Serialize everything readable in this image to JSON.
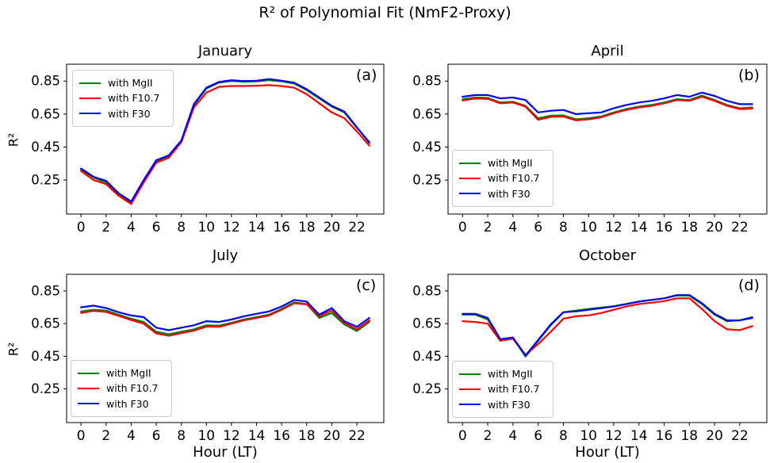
{
  "figure": {
    "suptitle": "R² of Polynomial Fit (NmF2-Proxy)"
  },
  "axes": {
    "ylabel": "R²",
    "xlabel": "Hour (LT)",
    "ytick_labels": [
      "0.85",
      "0.65",
      "0.45",
      "0.25"
    ],
    "yticks": [
      0.85,
      0.65,
      0.45,
      0.25
    ],
    "xticks": [
      0,
      2,
      4,
      6,
      8,
      10,
      12,
      14,
      16,
      18,
      20,
      22
    ],
    "ylim": [
      0.044,
      0.952
    ],
    "xlim": [
      -1.15,
      24.15
    ],
    "grid": false
  },
  "legend": {
    "position_panel_a": "upper-left",
    "position_panels_bcd": "lower-left",
    "items": [
      {
        "label": "with MgII",
        "color": "#008000",
        "series": "mgii"
      },
      {
        "label": "with F10.7",
        "color": "#ff0000",
        "series": "f107"
      },
      {
        "label": "with F30",
        "color": "#0000ff",
        "series": "f30"
      }
    ]
  },
  "chart_data": [
    {
      "type": "line",
      "title": "January",
      "panel_label": "(a)",
      "legend_position": "upper-left",
      "x": [
        0,
        1,
        2,
        3,
        4,
        5,
        6,
        7,
        8,
        9,
        10,
        11,
        12,
        13,
        14,
        15,
        16,
        17,
        18,
        19,
        20,
        21,
        22,
        23
      ],
      "series": [
        {
          "name": "with MgII",
          "color": "#008000",
          "values": [
            0.315,
            0.265,
            0.235,
            0.165,
            0.115,
            0.245,
            0.365,
            0.395,
            0.485,
            0.705,
            0.805,
            0.84,
            0.85,
            0.846,
            0.848,
            0.855,
            0.848,
            0.835,
            0.795,
            0.745,
            0.695,
            0.66,
            0.568,
            0.48
          ]
        },
        {
          "name": "with F10.7",
          "color": "#ff0000",
          "values": [
            0.305,
            0.25,
            0.225,
            0.155,
            0.105,
            0.235,
            0.355,
            0.385,
            0.48,
            0.69,
            0.78,
            0.815,
            0.82,
            0.82,
            0.822,
            0.825,
            0.82,
            0.81,
            0.77,
            0.715,
            0.66,
            0.625,
            0.545,
            0.458
          ]
        },
        {
          "name": "with F30",
          "color": "#0000ff",
          "values": [
            0.32,
            0.27,
            0.245,
            0.17,
            0.12,
            0.25,
            0.37,
            0.4,
            0.49,
            0.71,
            0.81,
            0.845,
            0.855,
            0.85,
            0.852,
            0.862,
            0.852,
            0.84,
            0.8,
            0.75,
            0.7,
            0.665,
            0.57,
            0.475
          ]
        }
      ]
    },
    {
      "type": "line",
      "title": "April",
      "panel_label": "(b)",
      "legend_position": "lower-left",
      "x": [
        0,
        1,
        2,
        3,
        4,
        5,
        6,
        7,
        8,
        9,
        10,
        11,
        12,
        13,
        14,
        15,
        16,
        17,
        18,
        19,
        20,
        21,
        22,
        23
      ],
      "series": [
        {
          "name": "with MgII",
          "color": "#008000",
          "values": [
            0.74,
            0.75,
            0.748,
            0.72,
            0.725,
            0.7,
            0.625,
            0.64,
            0.642,
            0.618,
            0.625,
            0.635,
            0.66,
            0.68,
            0.695,
            0.705,
            0.72,
            0.74,
            0.735,
            0.762,
            0.735,
            0.705,
            0.685,
            0.69
          ]
        },
        {
          "name": "with F10.7",
          "color": "#ff0000",
          "values": [
            0.732,
            0.744,
            0.742,
            0.715,
            0.72,
            0.695,
            0.615,
            0.633,
            0.635,
            0.612,
            0.618,
            0.63,
            0.655,
            0.675,
            0.69,
            0.7,
            0.715,
            0.735,
            0.73,
            0.755,
            0.73,
            0.7,
            0.68,
            0.683
          ]
        },
        {
          "name": "with F30",
          "color": "#0000ff",
          "values": [
            0.755,
            0.765,
            0.765,
            0.745,
            0.75,
            0.735,
            0.66,
            0.67,
            0.675,
            0.65,
            0.655,
            0.66,
            0.685,
            0.705,
            0.72,
            0.73,
            0.745,
            0.765,
            0.755,
            0.78,
            0.76,
            0.73,
            0.71,
            0.71
          ]
        }
      ]
    },
    {
      "type": "line",
      "title": "July",
      "panel_label": "(c)",
      "legend_position": "lower-left",
      "x": [
        0,
        1,
        2,
        3,
        4,
        5,
        6,
        7,
        8,
        9,
        10,
        11,
        12,
        13,
        14,
        15,
        16,
        17,
        18,
        19,
        20,
        21,
        22,
        23
      ],
      "series": [
        {
          "name": "with MgII",
          "color": "#008000",
          "values": [
            0.725,
            0.735,
            0.73,
            0.705,
            0.68,
            0.66,
            0.6,
            0.585,
            0.6,
            0.615,
            0.64,
            0.638,
            0.655,
            0.675,
            0.69,
            0.705,
            0.74,
            0.78,
            0.77,
            0.685,
            0.715,
            0.645,
            0.605,
            0.66
          ]
        },
        {
          "name": "with F10.7",
          "color": "#ff0000",
          "values": [
            0.715,
            0.728,
            0.722,
            0.697,
            0.672,
            0.65,
            0.59,
            0.575,
            0.592,
            0.607,
            0.632,
            0.63,
            0.65,
            0.67,
            0.685,
            0.7,
            0.735,
            0.775,
            0.768,
            0.695,
            0.73,
            0.655,
            0.615,
            0.67
          ]
        },
        {
          "name": "with F30",
          "color": "#0000ff",
          "values": [
            0.75,
            0.76,
            0.745,
            0.72,
            0.7,
            0.69,
            0.625,
            0.61,
            0.625,
            0.64,
            0.665,
            0.66,
            0.675,
            0.695,
            0.71,
            0.725,
            0.755,
            0.795,
            0.785,
            0.705,
            0.745,
            0.665,
            0.63,
            0.685
          ]
        }
      ]
    },
    {
      "type": "line",
      "title": "October",
      "panel_label": "(d)",
      "legend_position": "lower-left",
      "x": [
        0,
        1,
        2,
        3,
        4,
        5,
        6,
        7,
        8,
        9,
        10,
        11,
        12,
        13,
        14,
        15,
        16,
        17,
        18,
        19,
        20,
        21,
        22,
        23
      ],
      "series": [
        {
          "name": "with MgII",
          "color": "#008000",
          "values": [
            0.705,
            0.705,
            0.675,
            0.55,
            0.562,
            0.448,
            0.545,
            0.64,
            0.72,
            0.73,
            0.74,
            0.748,
            0.757,
            0.77,
            0.785,
            0.795,
            0.805,
            0.822,
            0.822,
            0.77,
            0.705,
            0.665,
            0.67,
            0.69
          ]
        },
        {
          "name": "with F10.7",
          "color": "#ff0000",
          "values": [
            0.665,
            0.66,
            0.65,
            0.545,
            0.558,
            0.458,
            0.525,
            0.6,
            0.68,
            0.695,
            0.7,
            0.715,
            0.735,
            0.755,
            0.77,
            0.778,
            0.788,
            0.805,
            0.805,
            0.74,
            0.665,
            0.615,
            0.61,
            0.635
          ]
        },
        {
          "name": "with F30",
          "color": "#0000ff",
          "values": [
            0.71,
            0.71,
            0.685,
            0.555,
            0.565,
            0.455,
            0.55,
            0.645,
            0.72,
            0.725,
            0.735,
            0.745,
            0.755,
            0.77,
            0.785,
            0.795,
            0.805,
            0.825,
            0.825,
            0.775,
            0.71,
            0.67,
            0.67,
            0.685
          ]
        }
      ]
    }
  ]
}
